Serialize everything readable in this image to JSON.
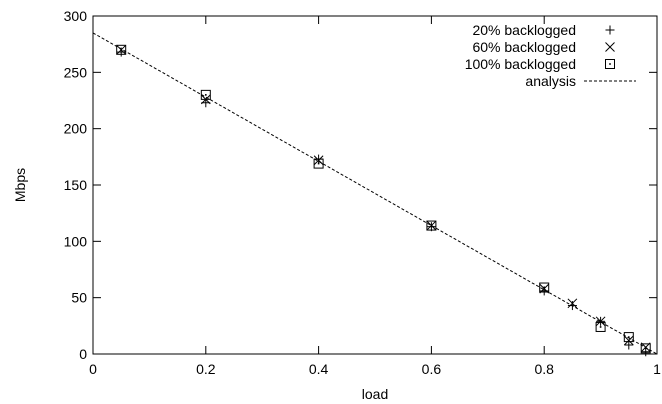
{
  "chart_data": {
    "type": "scatter",
    "title": "",
    "xlabel": "load",
    "ylabel": "Mbps",
    "xlim": [
      0,
      1
    ],
    "ylim": [
      0,
      300
    ],
    "xticks": [
      "0",
      "0.2",
      "0.4",
      "0.6",
      "0.8",
      "1"
    ],
    "yticks": [
      "0",
      "50",
      "100",
      "150",
      "200",
      "250",
      "300"
    ],
    "grid": false,
    "legend_position": "top-right",
    "series": [
      {
        "name": "20% backlogged",
        "marker": "plus",
        "points": [
          [
            0.05,
            268
          ],
          [
            0.2,
            223
          ],
          [
            0.4,
            173
          ],
          [
            0.6,
            113
          ],
          [
            0.8,
            56
          ],
          [
            0.85,
            43
          ],
          [
            0.9,
            29
          ],
          [
            0.95,
            8
          ],
          [
            0.98,
            2
          ]
        ]
      },
      {
        "name": "60% backlogged",
        "marker": "cross",
        "points": [
          [
            0.05,
            270
          ],
          [
            0.2,
            226
          ],
          [
            0.4,
            172
          ],
          [
            0.6,
            114
          ],
          [
            0.8,
            58
          ],
          [
            0.85,
            45
          ],
          [
            0.9,
            29
          ],
          [
            0.95,
            12
          ],
          [
            0.98,
            6
          ]
        ]
      },
      {
        "name": "100% backlogged",
        "marker": "boxdot",
        "points": [
          [
            0.05,
            270
          ],
          [
            0.2,
            230
          ],
          [
            0.4,
            169
          ],
          [
            0.6,
            114
          ],
          [
            0.8,
            59
          ],
          [
            0.9,
            24
          ],
          [
            0.95,
            15
          ],
          [
            0.98,
            5
          ]
        ]
      },
      {
        "name": "analysis",
        "marker": "dashed-line",
        "points": [
          [
            0,
            285
          ],
          [
            1,
            0
          ]
        ]
      }
    ]
  }
}
